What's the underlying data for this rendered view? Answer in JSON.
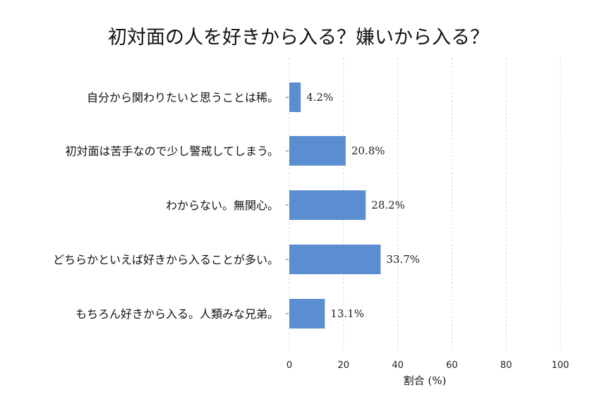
{
  "chart_data": {
    "type": "bar",
    "orientation": "horizontal",
    "title": "初対面の人を好きから入る？嫌いから入る？",
    "xlabel": "割合 (%)",
    "ylabel": "",
    "xlim": [
      0,
      100
    ],
    "xticks": [
      0,
      20,
      40,
      60,
      80,
      100
    ],
    "grid": true,
    "bar_color": "#5b8ed0",
    "categories": [
      "自分から関わりたいと思うことは稀。",
      "初対面は苦手なので少し警戒してしまう。",
      "わからない。無関心。",
      "どちらかといえば好きから入ることが多い。",
      "もちろん好きから入る。人類みな兄弟。"
    ],
    "values": [
      4.2,
      20.8,
      28.2,
      33.7,
      13.1
    ],
    "value_labels": [
      "4.2%",
      "20.8%",
      "28.2%",
      "33.7%",
      "13.1%"
    ]
  }
}
